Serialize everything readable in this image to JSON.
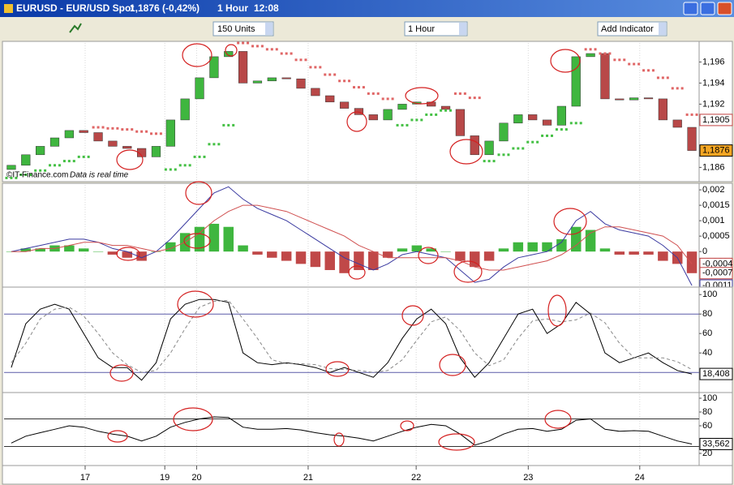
{
  "window": {
    "title": "EURUSD - EUR/USD Spot",
    "price": "1,1876 (-0,42%)",
    "interval": "1 Hour",
    "time": "12:08"
  },
  "toolbar": {
    "units": "150 Units",
    "interval": "1 Hour",
    "add_indicator": "Add Indicator"
  },
  "watermark": {
    "source": "©IT-Finance.com",
    "note": "Data is real time"
  },
  "x_axis": {
    "ticks": [
      {
        "value": 5.1,
        "label": "17"
      },
      {
        "value": 10.6,
        "label": "19"
      },
      {
        "value": 12.8,
        "label": "20"
      },
      {
        "value": 20.5,
        "label": "21"
      },
      {
        "value": 27.96,
        "label": "22"
      },
      {
        "value": 35.7,
        "label": "23"
      },
      {
        "value": 43.4,
        "label": "24"
      }
    ]
  },
  "chart_data": [
    {
      "type": "candlestick",
      "ylim": [
        1.1848,
        1.1978
      ],
      "yticks": [
        {
          "value": 1.196,
          "label": "1,196"
        },
        {
          "value": 1.194,
          "label": "1,194"
        },
        {
          "value": 1.192,
          "label": "1,192"
        },
        {
          "value": 1.186,
          "label": "1,186"
        }
      ],
      "up_color": "#3fb63f",
      "down_color": "#b84848",
      "open": [
        1.1858,
        1.1862,
        1.1872,
        1.188,
        1.1888,
        1.1895,
        1.1893,
        1.1885,
        1.188,
        1.1878,
        1.187,
        1.188,
        1.1905,
        1.1925,
        1.1945,
        1.1965,
        1.197,
        1.194,
        1.1942,
        1.1945,
        1.1944,
        1.1935,
        1.1928,
        1.1922,
        1.1916,
        1.191,
        1.1905,
        1.1915,
        1.192,
        1.1922,
        1.1918,
        1.1915,
        1.189,
        1.1872,
        1.1885,
        1.1902,
        1.191,
        1.1905,
        1.19,
        1.1918,
        1.1965,
        1.1968,
        1.1925,
        1.1924,
        1.1926,
        1.1925,
        1.1905,
        1.1898
      ],
      "close": [
        1.1862,
        1.1872,
        1.188,
        1.1888,
        1.1895,
        1.1893,
        1.1885,
        1.188,
        1.1878,
        1.187,
        1.188,
        1.1905,
        1.1925,
        1.1945,
        1.1965,
        1.197,
        1.194,
        1.1942,
        1.1945,
        1.1944,
        1.1935,
        1.1928,
        1.1922,
        1.1916,
        1.191,
        1.1905,
        1.1915,
        1.192,
        1.1922,
        1.1918,
        1.1915,
        1.189,
        1.1872,
        1.1885,
        1.1902,
        1.191,
        1.1905,
        1.19,
        1.1918,
        1.1965,
        1.1968,
        1.1925,
        1.1924,
        1.1926,
        1.1925,
        1.1905,
        1.1898,
        1.1876
      ],
      "sar": {
        "above_color": "#e06666",
        "below_color": "#44c044",
        "values": [
          1.185,
          1.1853,
          1.1857,
          1.1862,
          1.1866,
          1.187,
          1.1898,
          1.1897,
          1.1896,
          1.1894,
          1.1892,
          1.1858,
          1.1862,
          1.187,
          1.1882,
          1.19,
          1.1978,
          1.1975,
          1.1972,
          1.1968,
          1.1962,
          1.1955,
          1.1948,
          1.1942,
          1.1936,
          1.193,
          1.1925,
          1.19,
          1.1905,
          1.191,
          1.1914,
          1.193,
          1.1926,
          1.1866,
          1.1872,
          1.1878,
          1.1884,
          1.189,
          1.1896,
          1.1902,
          1.1972,
          1.1968,
          1.1962,
          1.1958,
          1.1952,
          1.1945,
          1.1935,
          1.191
        ]
      },
      "markers": [
        {
          "value": 1.1905,
          "label": "1,1905",
          "color": "#c04040",
          "fill": "#ffffff"
        },
        {
          "value": 1.1876,
          "label": "1,1876",
          "color": "#000000",
          "fill": "#f5a623"
        }
      ]
    },
    {
      "type": "macd",
      "ylim": [
        -0.0011,
        0.00216
      ],
      "yticks": [
        {
          "value": 0.002,
          "label": "0,002"
        },
        {
          "value": 0.0015,
          "label": "0,0015"
        },
        {
          "value": 0.001,
          "label": "0,001"
        },
        {
          "value": 0.0005,
          "label": "0,0005"
        },
        0
      ],
      "histogram": {
        "up_color": "#3fb63f",
        "down_color": "#c04848",
        "values": [
          0,
          0.0001,
          0.0001,
          0.0002,
          0.0002,
          0.0001,
          0,
          -0.0001,
          -0.0002,
          -0.0003,
          0,
          0.0003,
          0.0006,
          0.0008,
          0.0009,
          0.0008,
          0.0002,
          -0.0001,
          -0.0002,
          -0.0003,
          -0.0004,
          -0.0005,
          -0.0006,
          -0.0007,
          -0.0006,
          -0.0006,
          -0.0002,
          0.0001,
          0.0002,
          0.0001,
          0,
          -0.0003,
          -0.0005,
          -0.0003,
          0.0001,
          0.0003,
          0.0003,
          0.0003,
          0.0004,
          0.0008,
          0.0007,
          0.0001,
          -0.0001,
          -0.0001,
          -0.0001,
          -0.0003,
          -0.0004,
          -0.0007
        ]
      },
      "lines": [
        {
          "color": "#3a3aa0",
          "values": [
            0,
            0.0001,
            0.0002,
            0.0003,
            0.0004,
            0.0004,
            0.0003,
            0.0001,
            0,
            -0.0002,
            0,
            0.0004,
            0.0009,
            0.0014,
            0.0019,
            0.0021,
            0.0017,
            0.0014,
            0.0012,
            0.001,
            0.0007,
            0.0004,
            0.0001,
            -0.0002,
            -0.0004,
            -0.0006,
            -0.0004,
            -0.0001,
            0,
            -0.0001,
            -0.0002,
            -0.0006,
            -0.001,
            -0.0009,
            -0.0005,
            -0.0002,
            -0.0001,
            0,
            0.0003,
            0.001,
            0.0013,
            0.0009,
            0.0007,
            0.0006,
            0.0005,
            0.0002,
            -0.0002,
            -0.0011
          ]
        },
        {
          "color": "#d05050",
          "values": [
            0,
            0,
            0.0001,
            0.0001,
            0.0002,
            0.0003,
            0.0003,
            0.0002,
            0.0002,
            0.0001,
            0,
            0.0001,
            0.0003,
            0.0006,
            0.001,
            0.0013,
            0.0015,
            0.0015,
            0.0014,
            0.0013,
            0.0011,
            0.0009,
            0.0007,
            0.0005,
            0.0002,
            0,
            -0.0002,
            -0.0002,
            -0.0002,
            -0.0002,
            -0.0002,
            -0.0003,
            -0.0005,
            -0.0006,
            -0.0006,
            -0.0005,
            -0.0004,
            -0.0003,
            -0.0001,
            0.0002,
            0.0006,
            0.0008,
            0.0008,
            0.0007,
            0.0006,
            0.0005,
            0.0002,
            -0.0004
          ]
        }
      ],
      "markers": [
        {
          "value": -0.0004,
          "label": "-0,0004",
          "color": "#c04040",
          "fill": "#ffffff"
        },
        {
          "value": -0.0007,
          "label": "-0,0007",
          "color": "#c04040",
          "fill": "#ffffff"
        },
        {
          "value": -0.0011,
          "label": "-0,0011",
          "color": "#3a3aa0",
          "fill": "#ffffff"
        }
      ]
    },
    {
      "type": "stochastic",
      "ylim": [
        1,
        106
      ],
      "yticks": [
        100,
        80,
        60,
        40
      ],
      "levels": [
        80,
        20
      ],
      "level_color": "#5a5aa8",
      "lines": [
        {
          "color": "#000000",
          "values": [
            25,
            70,
            85,
            90,
            85,
            60,
            35,
            25,
            25,
            12,
            30,
            75,
            90,
            95,
            95,
            92,
            40,
            30,
            28,
            30,
            28,
            25,
            20,
            25,
            20,
            15,
            30,
            55,
            75,
            85,
            70,
            35,
            15,
            30,
            55,
            80,
            85,
            60,
            70,
            92,
            80,
            40,
            30,
            35,
            40,
            30,
            22,
            18.408
          ]
        },
        {
          "color": "#888888",
          "dash": true,
          "values": [
            30,
            50,
            75,
            85,
            87,
            78,
            60,
            40,
            28,
            20,
            22,
            40,
            65,
            87,
            93,
            94,
            75,
            55,
            33,
            29,
            29,
            28,
            24,
            23,
            22,
            20,
            22,
            33,
            53,
            72,
            77,
            63,
            40,
            27,
            33,
            55,
            73,
            75,
            72,
            74,
            81,
            71,
            50,
            35,
            35,
            35,
            31,
            23
          ]
        }
      ],
      "markers": [
        {
          "value": 18.408,
          "label": "18,408",
          "color": "#000000",
          "fill": "#ffffff"
        }
      ]
    },
    {
      "type": "rsi",
      "ylim": [
        4.7,
        105.9
      ],
      "yticks": [
        100,
        80,
        60,
        20
      ],
      "levels": [
        70,
        30
      ],
      "level_color": "#333333",
      "lines": [
        {
          "color": "#000000",
          "values": [
            35,
            45,
            50,
            55,
            60,
            58,
            52,
            48,
            45,
            38,
            45,
            58,
            65,
            70,
            73,
            72,
            58,
            55,
            55,
            56,
            54,
            50,
            47,
            45,
            42,
            38,
            45,
            52,
            58,
            62,
            60,
            48,
            32,
            38,
            48,
            55,
            56,
            52,
            55,
            68,
            70,
            55,
            52,
            53,
            52,
            45,
            38,
            33.562
          ]
        }
      ],
      "markers": [
        {
          "value": 33.562,
          "label": "33,562",
          "color": "#000000",
          "fill": "#ffffff"
        }
      ]
    }
  ]
}
